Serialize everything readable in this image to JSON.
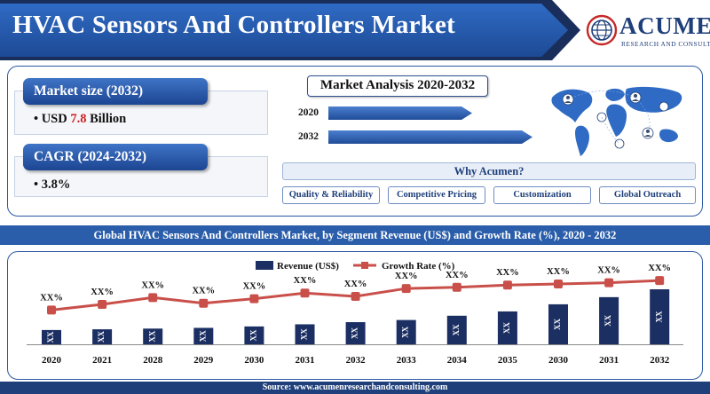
{
  "header": {
    "title": "HVAC Sensors And Controllers Market",
    "logo_name": "ACUMEN",
    "logo_tagline": "RESEARCH AND CONSULTING"
  },
  "market_size": {
    "label": "Market size (2032)",
    "value_prefix": "USD ",
    "value_number": "7.8",
    "value_suffix": " Billion"
  },
  "cagr": {
    "label": "CAGR (2024-2032)",
    "value": "3.8%"
  },
  "market_analysis": {
    "title": "Market Analysis 2020-2032",
    "years": [
      "2020",
      "2032"
    ]
  },
  "why_acumen": {
    "title": "Why Acumen?",
    "items": [
      "Quality & Reliability",
      "Competitive Pricing",
      "Customization",
      "Global Outreach"
    ]
  },
  "section_title": "Global HVAC Sensors And Controllers Market, by Segment Revenue (US$) and Growth Rate (%), 2020 - 2032",
  "chart_data": {
    "type": "bar",
    "categories": [
      "2020",
      "2021",
      "2028",
      "2029",
      "2030",
      "2031",
      "2032",
      "2033",
      "2034",
      "2035",
      "2030",
      "2031",
      "2032"
    ],
    "series": [
      {
        "name": "Revenue (US$)",
        "type": "bar",
        "values": [
          1.0,
          1.05,
          1.1,
          1.15,
          1.25,
          1.4,
          1.55,
          1.7,
          2.0,
          2.3,
          2.8,
          3.3,
          3.85
        ],
        "data_labels": [
          "XX",
          "XX",
          "XX",
          "XX",
          "XX",
          "XX",
          "XX",
          "XX",
          "XX",
          "XX",
          "XX",
          "XX",
          "XX"
        ]
      },
      {
        "name": "Growth Rate (%)",
        "type": "line",
        "values": [
          2.0,
          2.5,
          3.1,
          2.6,
          3.0,
          3.5,
          3.2,
          3.9,
          4.0,
          4.2,
          4.3,
          4.4,
          4.6
        ],
        "data_labels": [
          "XX%",
          "XX%",
          "XX%",
          "XX%",
          "XX%",
          "XX%",
          "XX%",
          "XX%",
          "XX%",
          "XX%",
          "XX%",
          "XX%",
          "XX%"
        ]
      }
    ],
    "legend_position": "top-center",
    "grid": false,
    "colors": {
      "bar": "#1c2f63",
      "line": "#c9504a"
    }
  },
  "footer": {
    "source": "Source: www.acumenresearchandconsulting.com"
  },
  "colors": {
    "primary_blue": "#2a5daa",
    "dark_blue": "#1f3f7a",
    "highlight_red": "#d21f1f"
  }
}
